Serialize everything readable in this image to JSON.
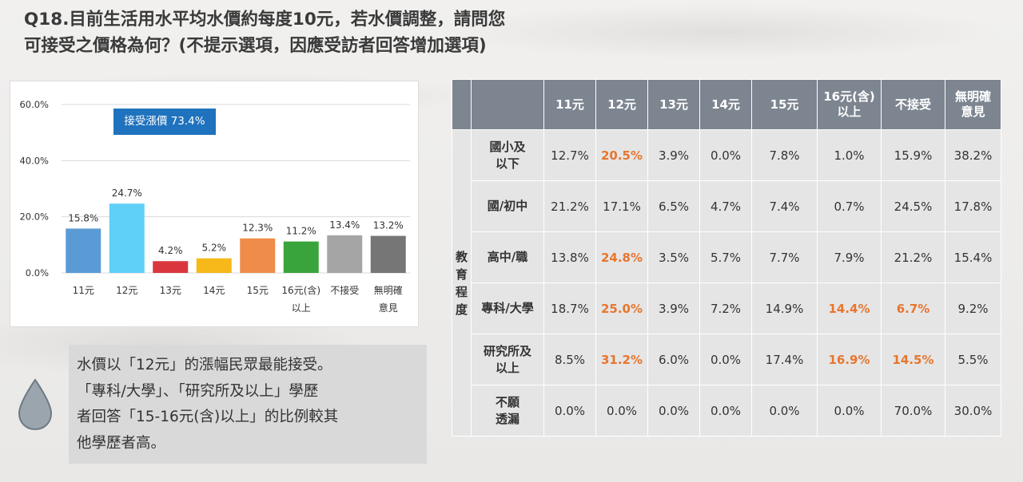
{
  "title": {
    "line1": "Q18.目前生活用水平均水價約每度10元，若水價調整，請問您",
    "line2": "可接受之價格為何？(不提示選項，因應受訪者回答增加選項)"
  },
  "callout": "接受漲價 73.4%",
  "note": {
    "lines": [
      "水價以「12元」的漲幅民眾最能接受。",
      "「專科/大學」、「研究所及以上」學歷",
      "者回答「15-16元(含)以上」的比例較其",
      "他學歷者高。"
    ]
  },
  "chart_data": {
    "type": "bar",
    "categories": [
      "11元",
      "12元",
      "13元",
      "14元",
      "15元",
      "16元(含)以上",
      "不接受",
      "無明確意見"
    ],
    "category_lines": [
      [
        "11元"
      ],
      [
        "12元"
      ],
      [
        "13元"
      ],
      [
        "14元"
      ],
      [
        "15元"
      ],
      [
        "16元(含)",
        "以上"
      ],
      [
        "不接受"
      ],
      [
        "無明確",
        "意見"
      ]
    ],
    "values": [
      15.8,
      24.7,
      4.2,
      5.2,
      12.3,
      11.2,
      13.4,
      13.2
    ],
    "value_labels": [
      "15.8%",
      "24.7%",
      "4.2%",
      "5.2%",
      "12.3%",
      "11.2%",
      "13.4%",
      "13.2%"
    ],
    "colors": [
      "#5b9bd5",
      "#5fd0f8",
      "#d9363e",
      "#f6b919",
      "#ef8c4a",
      "#3aa43c",
      "#a5a5a5",
      "#767676"
    ],
    "yticks": [
      0,
      20,
      40,
      60
    ],
    "ytick_labels": [
      "0.0%",
      "20.0%",
      "40.0%",
      "60.0%"
    ],
    "ylim": [
      0,
      60
    ],
    "grid": true,
    "legend": "none",
    "xlabel": "",
    "ylabel": ""
  },
  "table": {
    "headers": [
      "11元",
      "12元",
      "13元",
      "14元",
      "15元",
      "16元(含)以上",
      "不接受",
      "無明確意見"
    ],
    "header_lines": [
      [
        "11元"
      ],
      [
        "12元"
      ],
      [
        "13元"
      ],
      [
        "14元"
      ],
      [
        "15元"
      ],
      [
        "16元(含)",
        "以上"
      ],
      [
        "不接受"
      ],
      [
        "無明確",
        "意見"
      ]
    ],
    "group_label": "教育程度",
    "group_label_chars": [
      "教",
      "育",
      "程",
      "度"
    ],
    "rows": [
      {
        "label": "國小及以下",
        "label_lines": [
          "國小及",
          "以下"
        ],
        "cells": [
          "12.7%",
          "20.5%",
          "3.9%",
          "0.0%",
          "7.8%",
          "1.0%",
          "15.9%",
          "38.2%"
        ],
        "highlight": [
          1
        ]
      },
      {
        "label": "國/初中",
        "label_lines": [
          "國/初中"
        ],
        "cells": [
          "21.2%",
          "17.1%",
          "6.5%",
          "4.7%",
          "7.4%",
          "0.7%",
          "24.5%",
          "17.8%"
        ],
        "highlight": []
      },
      {
        "label": "高中/職",
        "label_lines": [
          "高中/職"
        ],
        "cells": [
          "13.8%",
          "24.8%",
          "3.5%",
          "5.7%",
          "7.7%",
          "7.9%",
          "21.2%",
          "15.4%"
        ],
        "highlight": [
          1
        ]
      },
      {
        "label": "專科/大學",
        "label_lines": [
          "專科/大學"
        ],
        "cells": [
          "18.7%",
          "25.0%",
          "3.9%",
          "7.2%",
          "14.9%",
          "14.4%",
          "6.7%",
          "9.2%"
        ],
        "highlight": [
          1,
          5,
          6
        ]
      },
      {
        "label": "研究所及以上",
        "label_lines": [
          "研究所及",
          "以上"
        ],
        "cells": [
          "8.5%",
          "31.2%",
          "6.0%",
          "0.0%",
          "17.4%",
          "16.9%",
          "14.5%",
          "5.5%"
        ],
        "highlight": [
          1,
          5,
          6
        ]
      },
      {
        "label": "不願透漏",
        "label_lines": [
          "不願",
          "透漏"
        ],
        "cells": [
          "0.0%",
          "0.0%",
          "0.0%",
          "0.0%",
          "0.0%",
          "0.0%",
          "70.0%",
          "30.0%"
        ],
        "highlight": []
      }
    ],
    "highlight_color": "#e7762f",
    "header_color": "#7d8590"
  }
}
